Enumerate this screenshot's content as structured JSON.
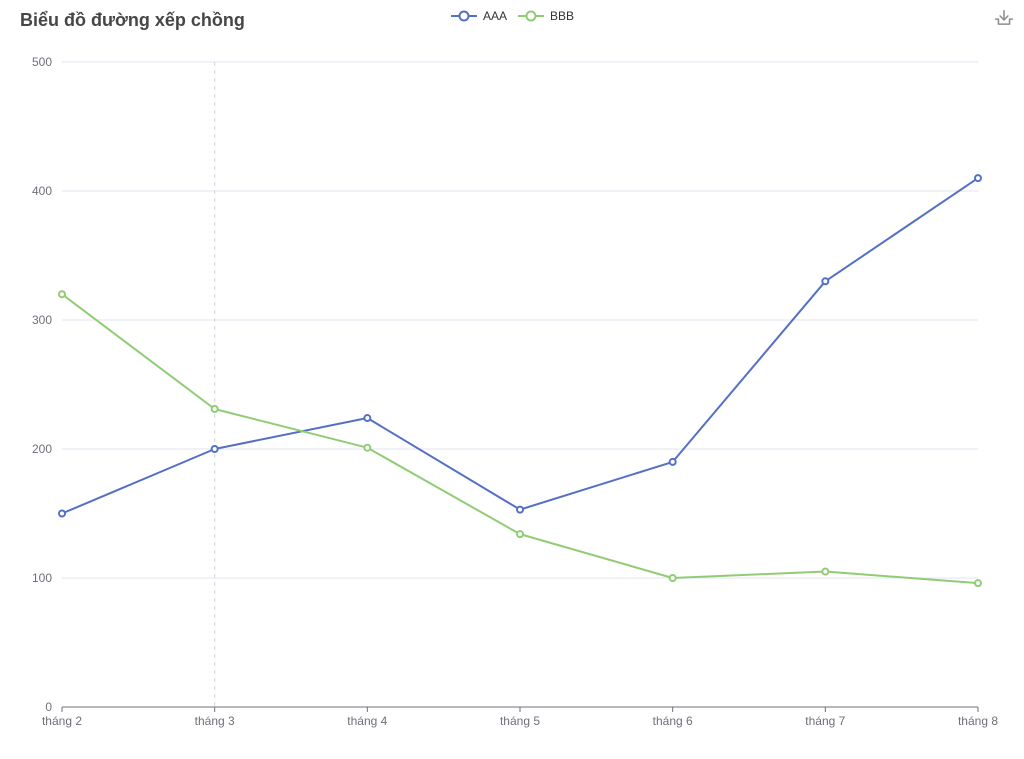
{
  "header": {
    "title": "Biểu đồ đường xếp chồng"
  },
  "legend": {
    "position": "top-center",
    "items": [
      {
        "label": "AAA",
        "color": "#5470c6"
      },
      {
        "label": "BBB",
        "color": "#91cc75"
      }
    ]
  },
  "toolbox": {
    "icons": [
      {
        "name": "download-icon",
        "meaning": "save as image",
        "color": "#8d8d8d"
      }
    ]
  },
  "chart_data": {
    "type": "line",
    "title": "Biểu đồ đường xếp chồng",
    "categories": [
      "tháng 2",
      "tháng 3",
      "tháng 4",
      "tháng 5",
      "tháng 6",
      "tháng 7",
      "tháng 8"
    ],
    "series": [
      {
        "name": "AAA",
        "color": "#5470c6",
        "values": [
          150,
          200,
          224,
          153,
          190,
          330,
          410
        ]
      },
      {
        "name": "BBB",
        "color": "#91cc75",
        "values": [
          320,
          231,
          201,
          134,
          100,
          105,
          96
        ]
      }
    ],
    "xlabel": "",
    "ylabel": "",
    "ylim": [
      0,
      500
    ],
    "y_ticks": [
      0,
      100,
      200,
      300,
      400,
      500
    ],
    "grid": true,
    "legend_position": "top-center",
    "axis_pointer": {
      "index": 1,
      "category": "tháng 3",
      "style": "dashed"
    },
    "colors": {
      "gridline": "#e0e6f1",
      "axis_line": "#6e7079",
      "axis_label": "#6e7079",
      "axis_pointer": "#d4d6dc",
      "title": "#464646",
      "background": "#ffffff"
    }
  }
}
